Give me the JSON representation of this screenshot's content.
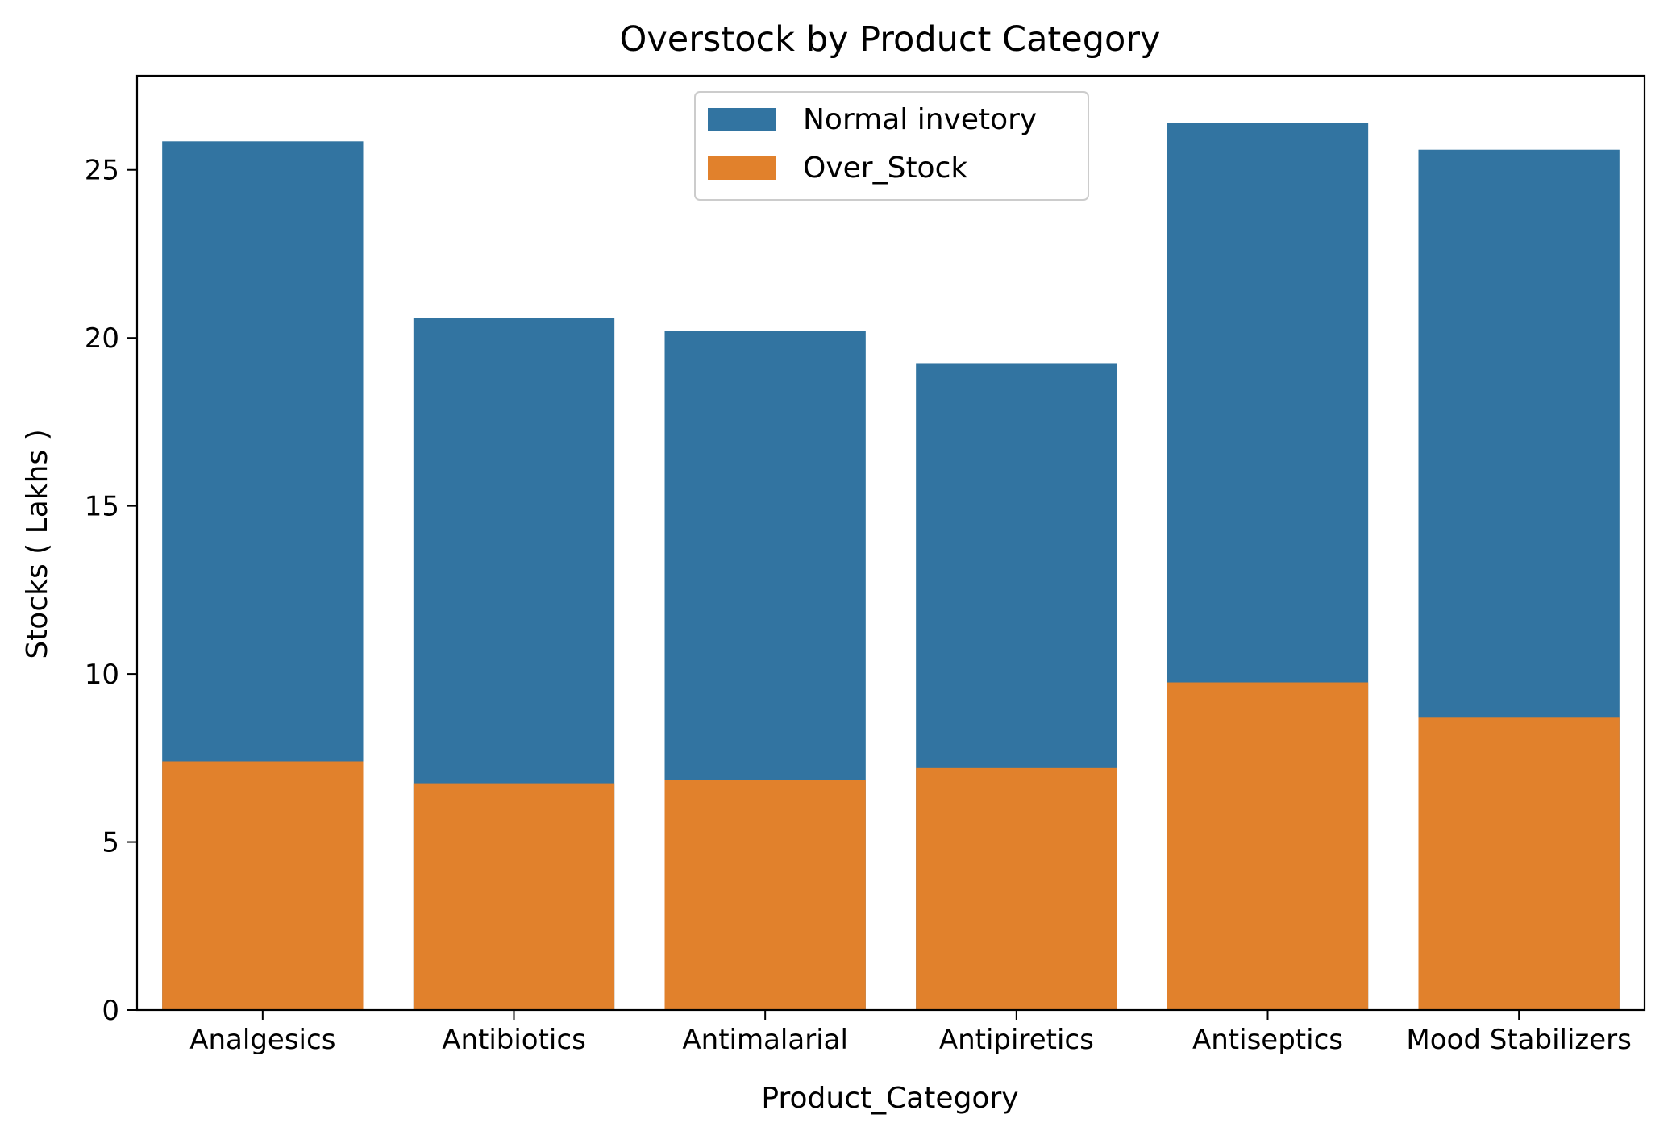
{
  "chart_data": {
    "type": "bar",
    "title": "Overstock by Product Category",
    "xlabel": "Product_Category",
    "ylabel": "Stocks ( Lakhs )",
    "categories": [
      "Analgesics",
      "Antibiotics",
      "Antimalarial",
      "Antipiretics",
      "Antiseptics",
      "Mood Stabilizers"
    ],
    "series": [
      {
        "name": "Normal invetory",
        "color": "#3274a1",
        "values": [
          25.85,
          20.6,
          20.2,
          19.25,
          26.4,
          25.6
        ]
      },
      {
        "name": "Over_Stock",
        "color": "#e1812c",
        "values": [
          7.4,
          6.75,
          6.85,
          7.2,
          9.75,
          8.7
        ]
      }
    ],
    "ylim": [
      0,
      27.8
    ],
    "yticks": [
      0,
      5,
      10,
      15,
      20,
      25
    ],
    "grid": false,
    "legend_position": "top-center"
  }
}
